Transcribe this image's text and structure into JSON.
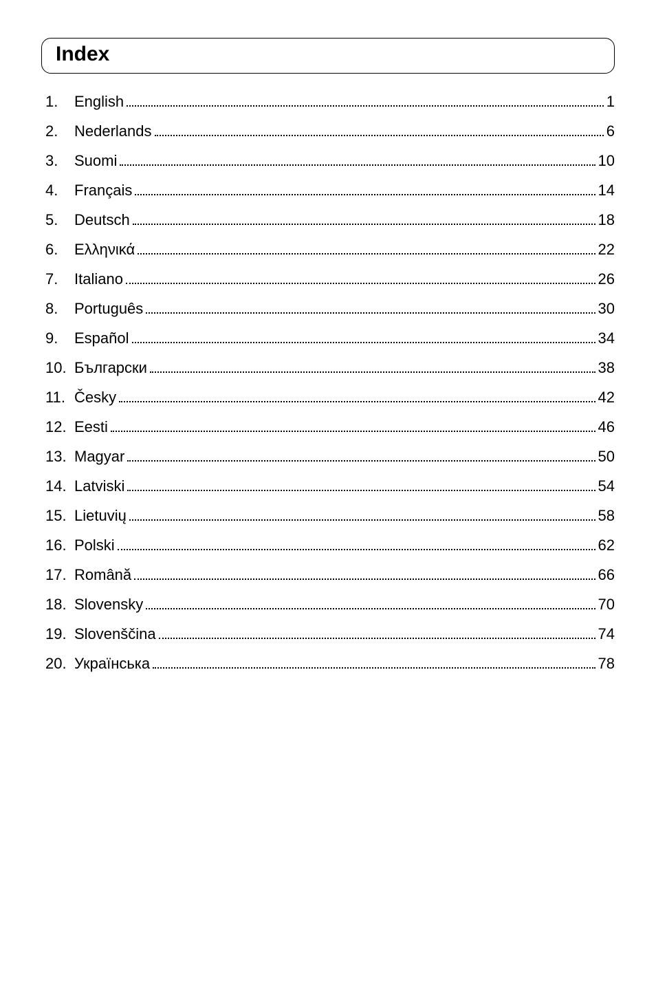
{
  "header": {
    "title": "Index"
  },
  "entries": [
    {
      "num": "1.",
      "label": "English",
      "page": "1"
    },
    {
      "num": "2.",
      "label": "Nederlands",
      "page": "6"
    },
    {
      "num": "3.",
      "label": "Suomi",
      "page": "10"
    },
    {
      "num": "4.",
      "label": "Français",
      "page": "14"
    },
    {
      "num": "5.",
      "label": "Deutsch",
      "page": "18"
    },
    {
      "num": "6.",
      "label": "Ελληνικά",
      "page": "22"
    },
    {
      "num": "7.",
      "label": "Italiano",
      "page": "26"
    },
    {
      "num": "8.",
      "label": "Português",
      "page": "30"
    },
    {
      "num": "9.",
      "label": "Español",
      "page": "34"
    },
    {
      "num": "10.",
      "label": "Български",
      "page": "38"
    },
    {
      "num": "11.",
      "label": "Česky",
      "page": "42"
    },
    {
      "num": "12.",
      "label": "Eesti",
      "page": "46"
    },
    {
      "num": "13.",
      "label": "Magyar",
      "page": "50"
    },
    {
      "num": "14.",
      "label": "Latviski",
      "page": "54"
    },
    {
      "num": "15.",
      "label": "Lietuvių",
      "page": "58"
    },
    {
      "num": "16.",
      "label": "Polski",
      "page": "62"
    },
    {
      "num": "17.",
      "label": "Română",
      "page": "66"
    },
    {
      "num": "18.",
      "label": "Slovensky",
      "page": "70"
    },
    {
      "num": "19.",
      "label": "Slovenščina",
      "page": "74"
    },
    {
      "num": "20.",
      "label": "Українська",
      "page": "78"
    }
  ],
  "style": {
    "page_background": "#ffffff",
    "text_color": "#000000",
    "title_fontsize": 30,
    "entry_fontsize": 22,
    "border_radius": 14,
    "border_color": "#000000"
  }
}
